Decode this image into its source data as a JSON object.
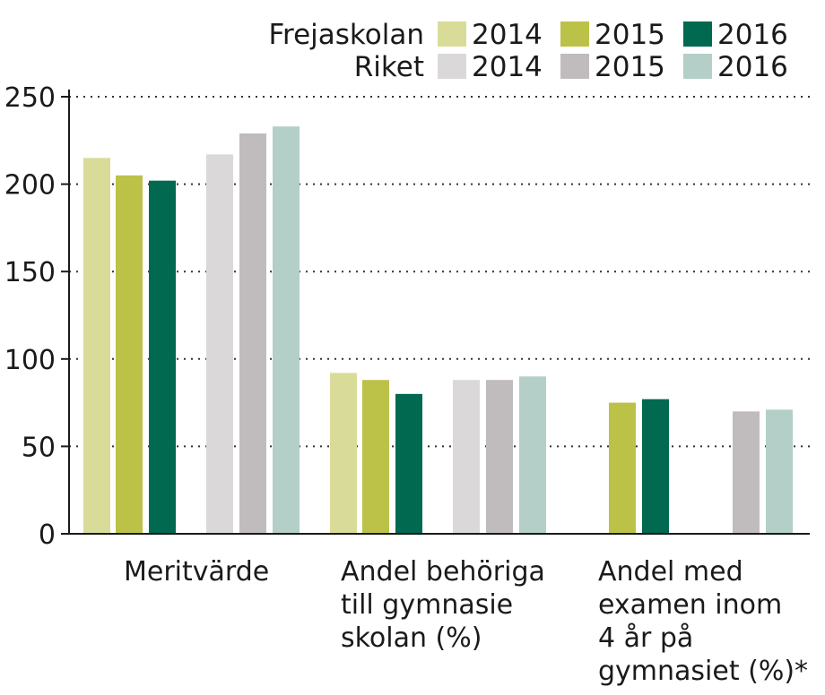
{
  "chart_data": {
    "type": "bar",
    "categories": [
      [
        "Meritvärde"
      ],
      [
        "Andel behöriga",
        "till gymnasie",
        "skolan (%)"
      ],
      [
        "Andel med",
        "examen inom",
        "4 år på",
        "gymnasiet (%)*"
      ]
    ],
    "legend": {
      "groups": [
        {
          "name": "Frejaskolan",
          "years": [
            "2014",
            "2015",
            "2016"
          ]
        },
        {
          "name": "Riket",
          "years": [
            "2014",
            "2015",
            "2016"
          ]
        }
      ]
    },
    "series": [
      {
        "group": "Frejaskolan",
        "year": "2014",
        "color": "#d9dc98",
        "values": [
          215,
          92,
          null
        ]
      },
      {
        "group": "Frejaskolan",
        "year": "2015",
        "color": "#bcc247",
        "values": [
          205,
          88,
          75
        ]
      },
      {
        "group": "Frejaskolan",
        "year": "2016",
        "color": "#00694f",
        "values": [
          202,
          80,
          77
        ]
      },
      {
        "group": "Riket",
        "year": "2014",
        "color": "#dad8d9",
        "values": [
          217,
          88,
          null
        ]
      },
      {
        "group": "Riket",
        "year": "2015",
        "color": "#c0bcbd",
        "values": [
          229,
          88,
          70
        ]
      },
      {
        "group": "Riket",
        "year": "2016",
        "color": "#b4cfc7",
        "values": [
          233,
          90,
          71
        ]
      }
    ],
    "yticks": [
      "0",
      "50",
      "100",
      "150",
      "200",
      "250"
    ],
    "ylim": [
      0,
      250
    ],
    "grid": "dotted horizontal",
    "legend_position": "top-right"
  }
}
